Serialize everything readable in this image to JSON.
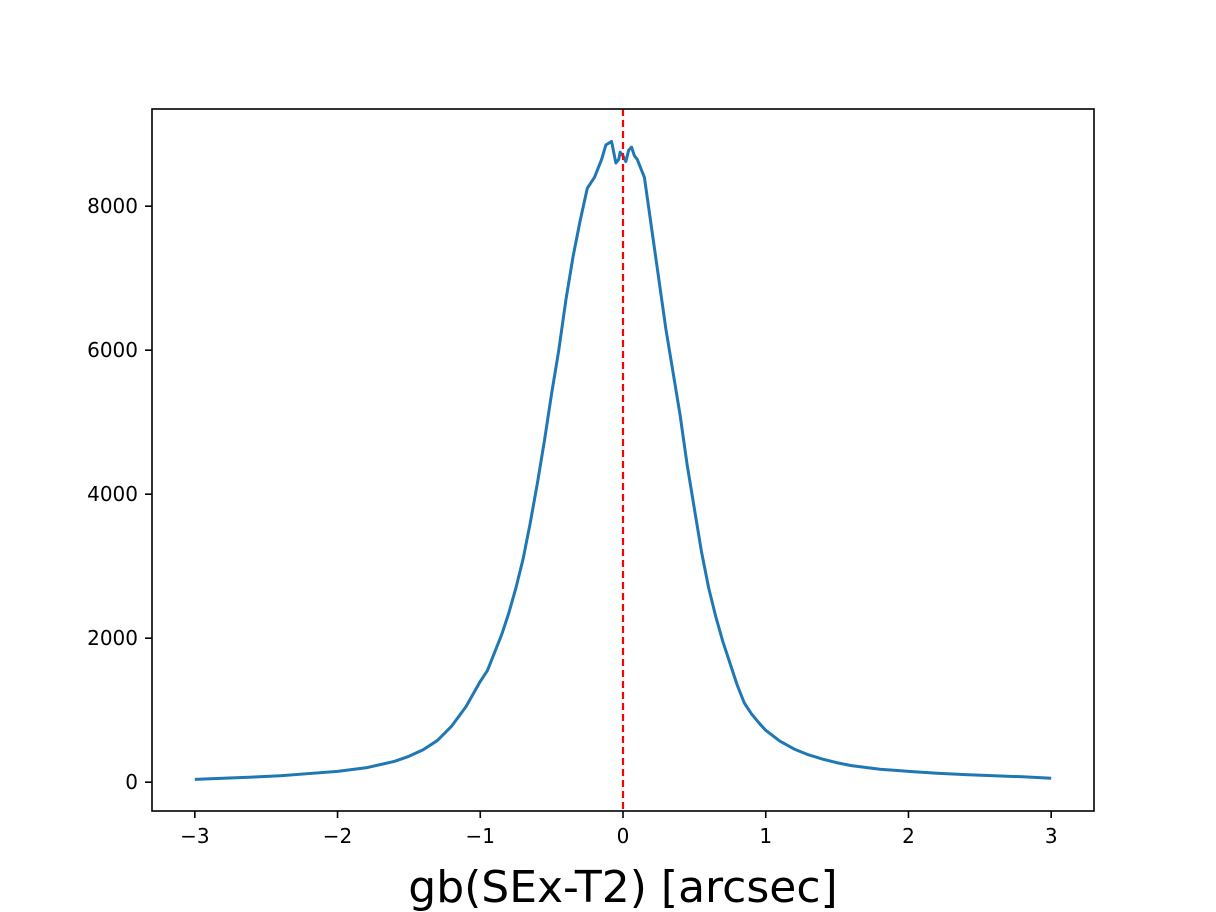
{
  "chart_data": {
    "type": "line",
    "title": "",
    "xlabel": "gb(SEx-T2) [arcsec]",
    "ylabel": "",
    "xlim": [
      -3.3,
      3.3
    ],
    "ylim": [
      -400,
      9350
    ],
    "xticks": [
      -3,
      -2,
      -1,
      0,
      1,
      2,
      3
    ],
    "xtick_labels": [
      "−3",
      "−2",
      "−1",
      "0",
      "1",
      "2",
      "3"
    ],
    "yticks": [
      0,
      2000,
      4000,
      6000,
      8000
    ],
    "ytick_labels": [
      "0",
      "2000",
      "4000",
      "6000",
      "8000"
    ],
    "grid": false,
    "legend": "none",
    "series": [
      {
        "color": "#1f77b4",
        "x": [
          -3.0,
          -2.8,
          -2.6,
          -2.4,
          -2.2,
          -2.0,
          -1.8,
          -1.6,
          -1.5,
          -1.4,
          -1.3,
          -1.2,
          -1.1,
          -1.0,
          -0.95,
          -0.9,
          -0.85,
          -0.8,
          -0.75,
          -0.7,
          -0.65,
          -0.6,
          -0.55,
          -0.5,
          -0.45,
          -0.4,
          -0.35,
          -0.3,
          -0.25,
          -0.2,
          -0.15,
          -0.12,
          -0.08,
          -0.05,
          -0.03,
          -0.02,
          0.0,
          0.02,
          0.04,
          0.06,
          0.08,
          0.1,
          0.15,
          0.2,
          0.25,
          0.3,
          0.35,
          0.4,
          0.45,
          0.5,
          0.55,
          0.6,
          0.65,
          0.7,
          0.75,
          0.8,
          0.85,
          0.9,
          0.95,
          1.0,
          1.1,
          1.2,
          1.3,
          1.4,
          1.5,
          1.6,
          1.8,
          2.0,
          2.2,
          2.4,
          2.6,
          2.8,
          3.0
        ],
        "y": [
          40,
          55,
          70,
          90,
          120,
          150,
          200,
          290,
          360,
          450,
          580,
          780,
          1050,
          1400,
          1550,
          1800,
          2050,
          2350,
          2700,
          3100,
          3600,
          4150,
          4750,
          5400,
          6000,
          6700,
          7300,
          7800,
          8250,
          8400,
          8650,
          8850,
          8900,
          8600,
          8650,
          8750,
          8700,
          8620,
          8780,
          8820,
          8700,
          8650,
          8400,
          7700,
          7000,
          6300,
          5700,
          5100,
          4400,
          3800,
          3200,
          2700,
          2300,
          1950,
          1650,
          1350,
          1100,
          950,
          830,
          720,
          570,
          460,
          380,
          320,
          270,
          230,
          180,
          150,
          125,
          105,
          90,
          75,
          55
        ]
      }
    ],
    "reference_line": {
      "x": 0,
      "color": "#ff0000",
      "style": "dashed"
    }
  }
}
